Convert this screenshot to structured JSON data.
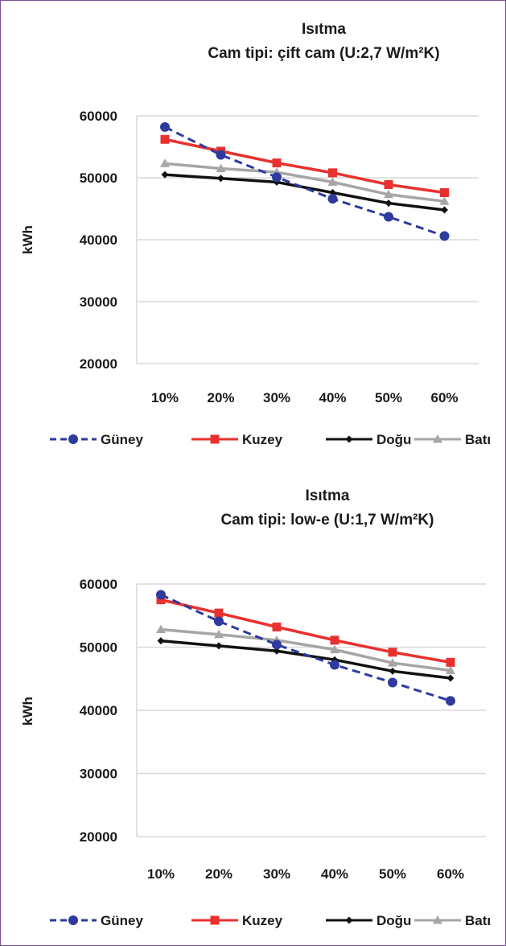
{
  "chart_data": [
    {
      "type": "line",
      "title": "Isıtma",
      "subtitle": "Cam tipi: çift cam (U:2,7 W/m²K)",
      "xlabel": "",
      "ylabel": "kWh",
      "categories": [
        "10%",
        "20%",
        "30%",
        "40%",
        "50%",
        "60%"
      ],
      "yticks": [
        "20000",
        "30000",
        "40000",
        "50000",
        "60000"
      ],
      "ylim": [
        20000,
        60000
      ],
      "grid": true,
      "legend_position": "bottom",
      "series": [
        {
          "name": "Güney",
          "color": "#2e3a9e",
          "dash": true,
          "marker": "circle",
          "values": [
            58200,
            53700,
            50100,
            46600,
            43700,
            40600
          ]
        },
        {
          "name": "Kuzey",
          "color": "#e8312f",
          "dash": false,
          "marker": "square",
          "values": [
            56200,
            54300,
            52400,
            50800,
            48900,
            47600
          ]
        },
        {
          "name": "Doğu",
          "color": "#111111",
          "dash": false,
          "marker": "diamond",
          "values": [
            50500,
            49900,
            49300,
            47600,
            45900,
            44800
          ]
        },
        {
          "name": "Batı",
          "color": "#a6a6a6",
          "dash": false,
          "marker": "triangle",
          "values": [
            52300,
            51500,
            50900,
            49300,
            47300,
            46200
          ]
        }
      ]
    },
    {
      "type": "line",
      "title": "Isıtma",
      "subtitle": "Cam tipi: low-e (U:1,7 W/m²K)",
      "xlabel": "",
      "ylabel": "kWh",
      "categories": [
        "10%",
        "20%",
        "30%",
        "40%",
        "50%",
        "60%"
      ],
      "yticks": [
        "20000",
        "30000",
        "40000",
        "50000",
        "60000"
      ],
      "ylim": [
        20000,
        60000
      ],
      "grid": true,
      "legend_position": "bottom",
      "series": [
        {
          "name": "Güney",
          "color": "#2e3a9e",
          "dash": true,
          "marker": "circle",
          "values": [
            58300,
            54100,
            50400,
            47200,
            44400,
            41500
          ]
        },
        {
          "name": "Kuzey",
          "color": "#e8312f",
          "dash": false,
          "marker": "square",
          "values": [
            57500,
            55400,
            53200,
            51100,
            49200,
            47600
          ]
        },
        {
          "name": "Doğu",
          "color": "#111111",
          "dash": false,
          "marker": "diamond",
          "values": [
            51000,
            50200,
            49400,
            48000,
            46200,
            45100
          ]
        },
        {
          "name": "Batı",
          "color": "#a6a6a6",
          "dash": false,
          "marker": "triangle",
          "values": [
            52800,
            52000,
            51100,
            49600,
            47500,
            46300
          ]
        }
      ]
    }
  ]
}
